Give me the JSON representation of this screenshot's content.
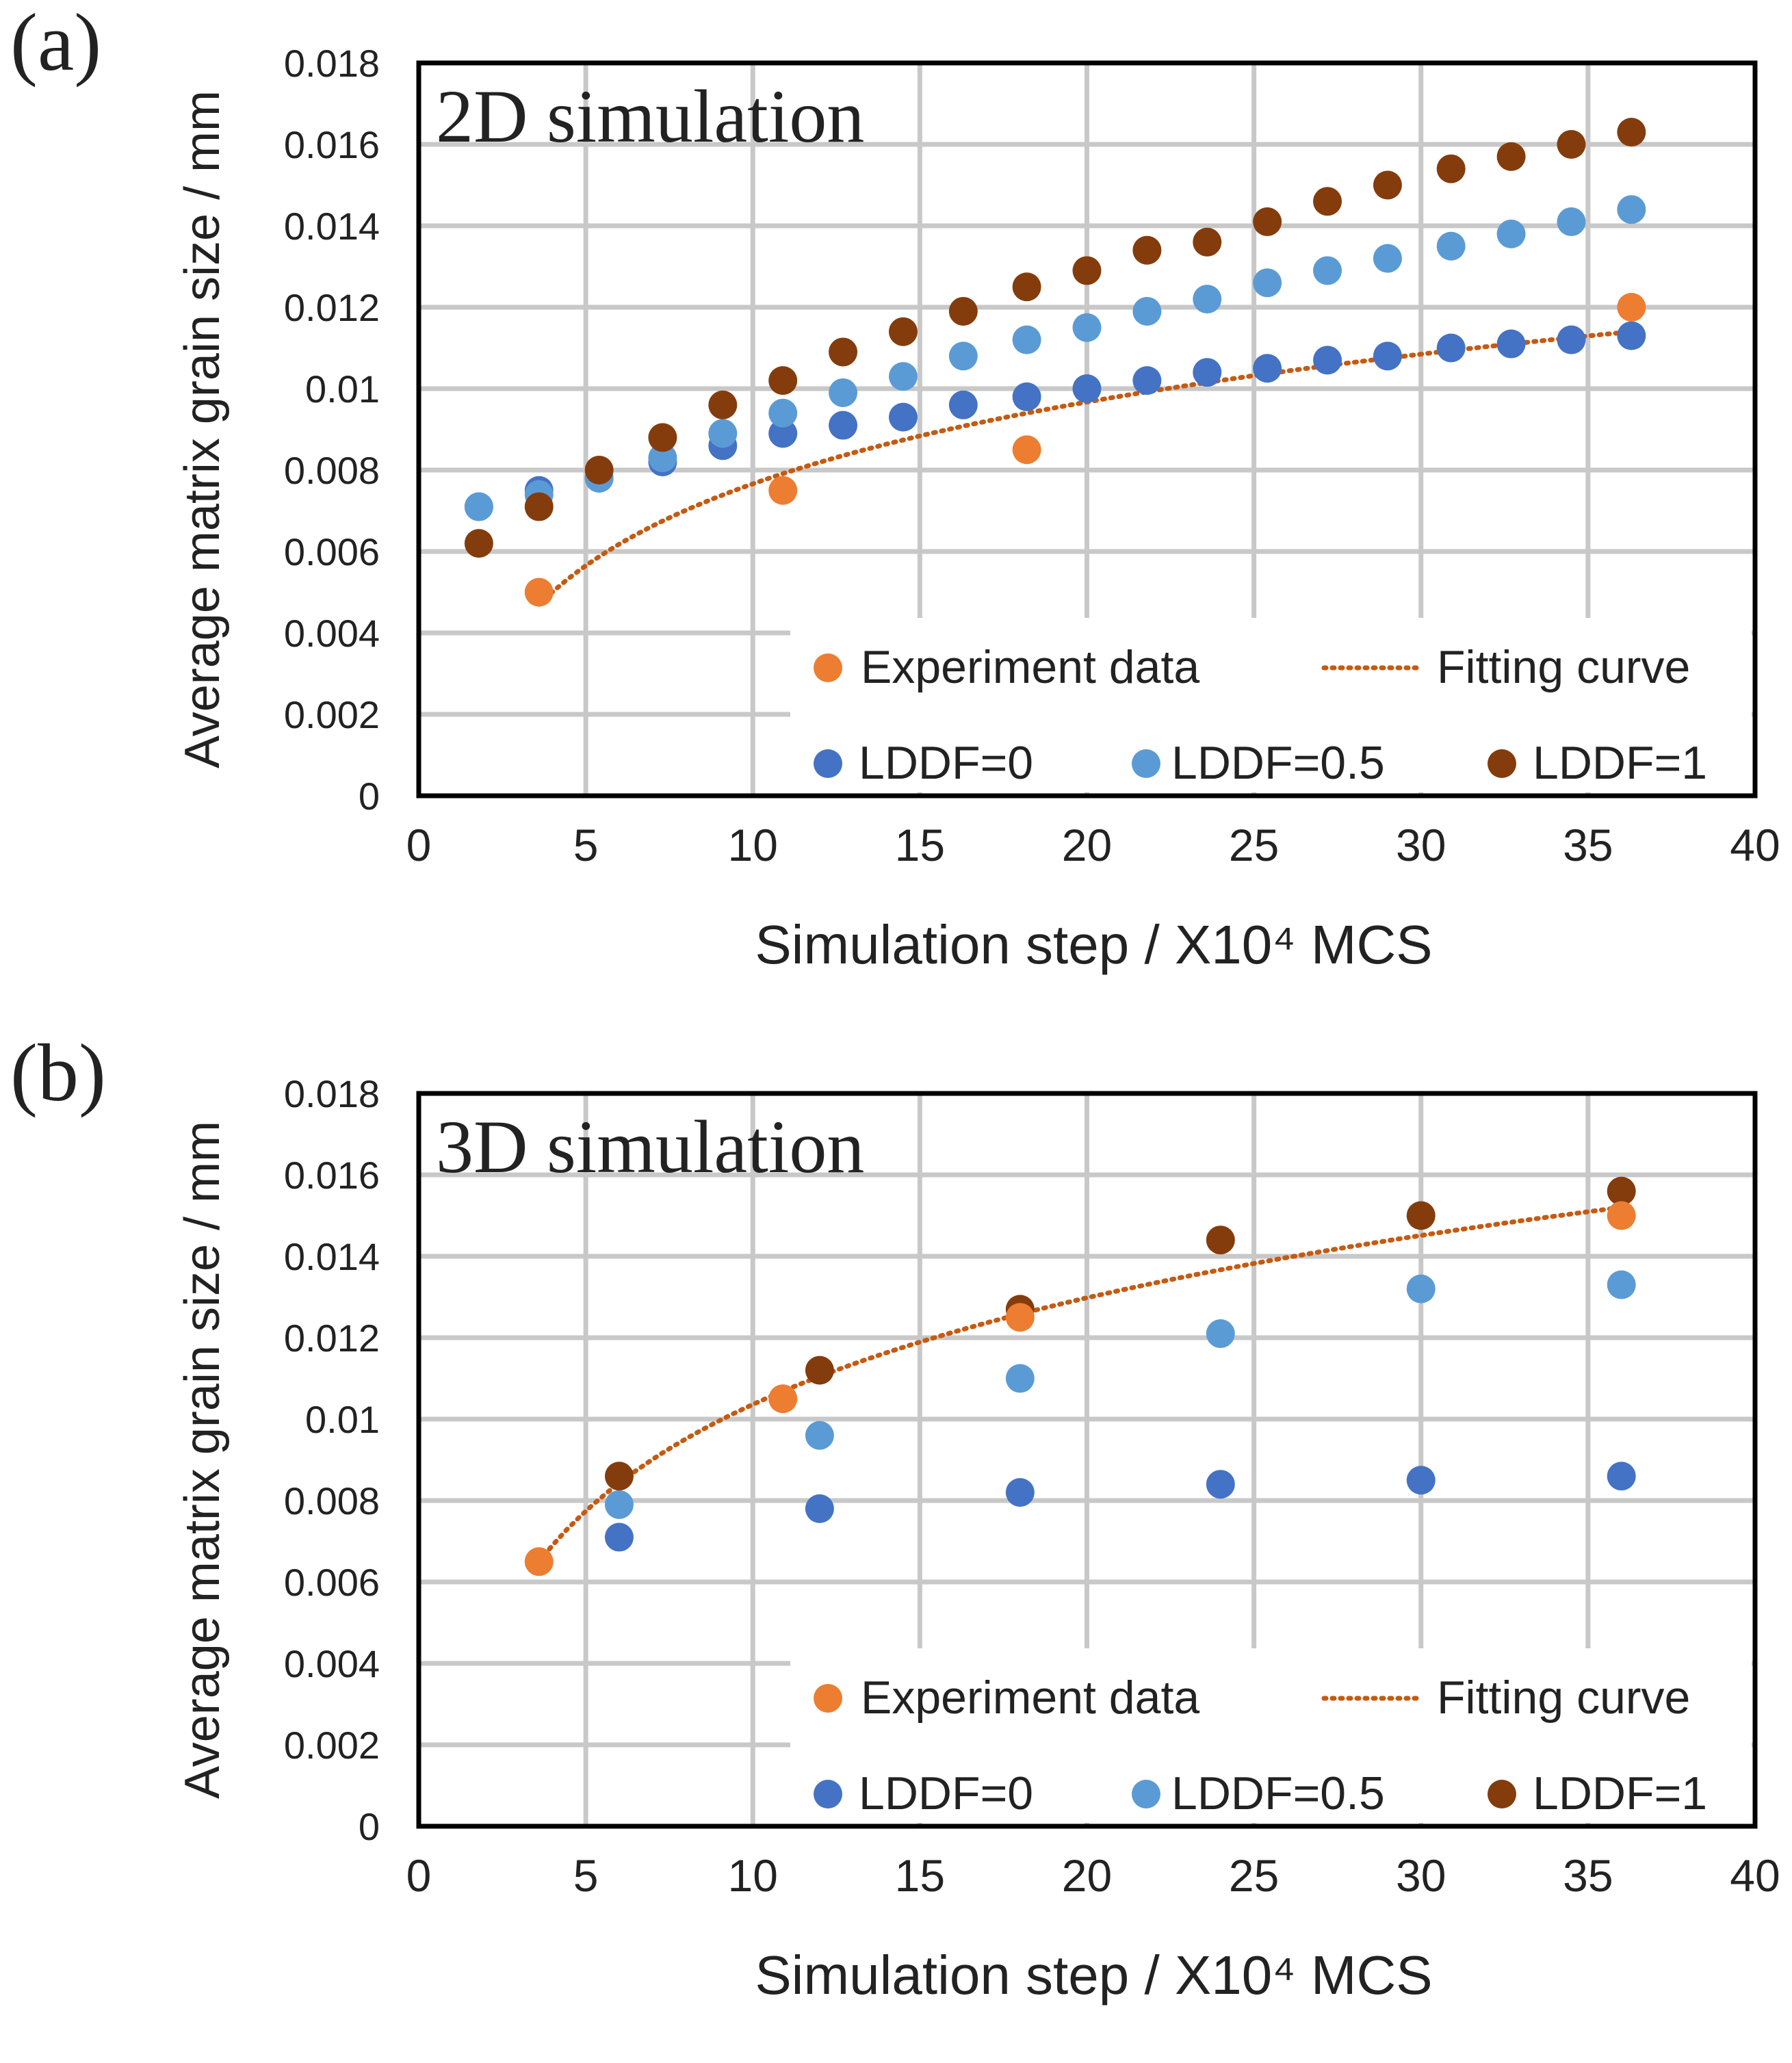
{
  "panels": [
    {
      "panel_label": "(a)",
      "title": "2D simulation",
      "legend": {
        "experiment": "Experiment data",
        "fit": "Fitting curve",
        "lddf0": "LDDF=0",
        "lddf05": "LDDF=0.5",
        "lddf1": "LDDF=1"
      },
      "chart_data": {
        "type": "scatter",
        "title": "2D simulation",
        "xlabel": "Simulation step / X10⁴ MCS",
        "ylabel": "Average matrix grain size / mm",
        "xlim": [
          0,
          40
        ],
        "ylim": [
          0,
          0.018
        ],
        "x_ticks": [
          "0",
          "5",
          "10",
          "15",
          "20",
          "25",
          "30",
          "35",
          "40"
        ],
        "y_ticks": [
          "0",
          "0.002",
          "0.004",
          "0.006",
          "0.008",
          "0.01",
          "0.012",
          "0.014",
          "0.016",
          "0.018"
        ],
        "series": [
          {
            "name": "Experiment data",
            "color": "#ED7D31",
            "x": [
              3.6,
              10.9,
              18.2,
              36.3
            ],
            "y": [
              0.005,
              0.0075,
              0.0085,
              0.012
            ]
          },
          {
            "name": "LDDF=0",
            "color": "#4472C4",
            "x": [
              1.8,
              3.6,
              5.4,
              7.3,
              9.1,
              10.9,
              12.7,
              14.5,
              16.3,
              18.2,
              20.0,
              21.8,
              23.6,
              25.4,
              27.2,
              29.0,
              30.9,
              32.7,
              34.5,
              36.3
            ],
            "y": [
              0.0071,
              0.0075,
              0.0078,
              0.0082,
              0.0086,
              0.0089,
              0.0091,
              0.0093,
              0.0096,
              0.0098,
              0.01,
              0.0102,
              0.0104,
              0.0105,
              0.0107,
              0.0108,
              0.011,
              0.0111,
              0.0112,
              0.0113
            ]
          },
          {
            "name": "LDDF=0.5",
            "color": "#5B9BD5",
            "x": [
              1.8,
              3.6,
              5.4,
              7.3,
              9.1,
              10.9,
              12.7,
              14.5,
              16.3,
              18.2,
              20.0,
              21.8,
              23.6,
              25.4,
              27.2,
              29.0,
              30.9,
              32.7,
              34.5,
              36.3
            ],
            "y": [
              0.0071,
              0.0074,
              0.0078,
              0.0083,
              0.0089,
              0.0094,
              0.0099,
              0.0103,
              0.0108,
              0.0112,
              0.0115,
              0.0119,
              0.0122,
              0.0126,
              0.0129,
              0.0132,
              0.0135,
              0.0138,
              0.0141,
              0.0144
            ]
          },
          {
            "name": "LDDF=1",
            "color": "#843C0C",
            "x": [
              1.8,
              3.6,
              5.4,
              7.3,
              9.1,
              10.9,
              12.7,
              14.5,
              16.3,
              18.2,
              20.0,
              21.8,
              23.6,
              25.4,
              27.2,
              29.0,
              30.9,
              32.7,
              34.5,
              36.3
            ],
            "y": [
              0.0062,
              0.0071,
              0.008,
              0.0088,
              0.0096,
              0.0102,
              0.0109,
              0.0114,
              0.0119,
              0.0125,
              0.0129,
              0.0134,
              0.0136,
              0.0141,
              0.0146,
              0.015,
              0.0154,
              0.0157,
              0.016,
              0.0163
            ]
          }
        ],
        "fit": {
          "name": "Fitting curve",
          "color": "#C55A11",
          "model": "logarithmic",
          "x_range": [
            3.6,
            36.3
          ],
          "y_start": 0.0047,
          "y_end": 0.0114
        }
      }
    },
    {
      "panel_label": "(b)",
      "title": "3D simulation",
      "legend": {
        "experiment": "Experiment data",
        "fit": "Fitting curve",
        "lddf0": "LDDF=0",
        "lddf05": "LDDF=0.5",
        "lddf1": "LDDF=1"
      },
      "chart_data": {
        "type": "scatter",
        "title": "3D simulation",
        "xlabel": "Simulation step / X10⁴ MCS",
        "ylabel": "Average matrix grain size / mm",
        "xlim": [
          0,
          40
        ],
        "ylim": [
          0,
          0.018
        ],
        "x_ticks": [
          "0",
          "5",
          "10",
          "15",
          "20",
          "25",
          "30",
          "35",
          "40"
        ],
        "y_ticks": [
          "0",
          "0.002",
          "0.004",
          "0.006",
          "0.008",
          "0.01",
          "0.012",
          "0.014",
          "0.016",
          "0.018"
        ],
        "series": [
          {
            "name": "Experiment data",
            "color": "#ED7D31",
            "x": [
              3.6,
              10.9,
              18.0,
              36.0
            ],
            "y": [
              0.0065,
              0.0105,
              0.0125,
              0.015
            ]
          },
          {
            "name": "LDDF=0",
            "color": "#4472C4",
            "x": [
              6.0,
              12.0,
              18.0,
              24.0,
              30.0,
              36.0
            ],
            "y": [
              0.0071,
              0.0078,
              0.0082,
              0.0084,
              0.0085,
              0.0086
            ]
          },
          {
            "name": "LDDF=0.5",
            "color": "#5B9BD5",
            "x": [
              6.0,
              12.0,
              18.0,
              24.0,
              30.0,
              36.0
            ],
            "y": [
              0.0079,
              0.0096,
              0.011,
              0.0121,
              0.0132,
              0.0133
            ]
          },
          {
            "name": "LDDF=1",
            "color": "#843C0C",
            "x": [
              6.0,
              12.0,
              18.0,
              24.0,
              30.0,
              36.0
            ],
            "y": [
              0.0086,
              0.0112,
              0.0127,
              0.0144,
              0.015,
              0.0156
            ]
          }
        ],
        "fit": {
          "name": "Fitting curve",
          "color": "#C55A11",
          "model": "logarithmic",
          "x_range": [
            3.6,
            36.0
          ],
          "y_start": 0.0065,
          "y_end": 0.0152
        }
      }
    }
  ]
}
